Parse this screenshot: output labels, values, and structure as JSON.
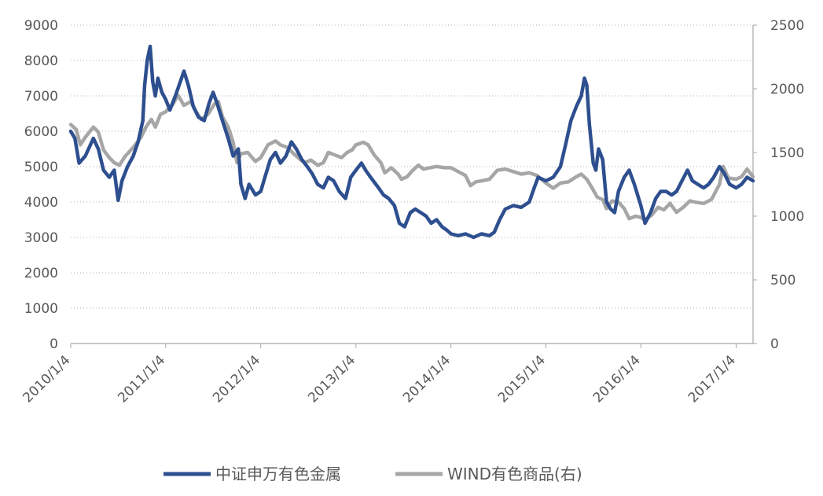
{
  "chart_data": {
    "type": "line",
    "title": "",
    "x_ticks": [
      "2010/1/4",
      "2011/1/4",
      "2012/1/4",
      "2013/1/4",
      "2014/1/4",
      "2015/1/4",
      "2016/1/4",
      "2017/1/4"
    ],
    "x_range": [
      "2010/1/4",
      "2017/3/10"
    ],
    "y_left": {
      "ticks": [
        0,
        1000,
        2000,
        3000,
        4000,
        5000,
        6000,
        7000,
        8000,
        9000
      ],
      "ylim": [
        0,
        9000
      ]
    },
    "y_right": {
      "ticks": [
        0,
        500,
        1000,
        1500,
        2000,
        2500
      ],
      "ylim": [
        0,
        2500
      ]
    },
    "grid": "horizontal-dotted",
    "legend_position": "bottom",
    "series": [
      {
        "name": "中证申万有色金属",
        "axis": "left",
        "color": "#2e4f8f",
        "points": [
          [
            "2010/1/4",
            6000
          ],
          [
            "2010/1/20",
            5800
          ],
          [
            "2010/2/5",
            5100
          ],
          [
            "2010/3/1",
            5300
          ],
          [
            "2010/4/1",
            5800
          ],
          [
            "2010/4/20",
            5500
          ],
          [
            "2010/5/10",
            4900
          ],
          [
            "2010/6/1",
            4700
          ],
          [
            "2010/6/20",
            4900
          ],
          [
            "2010/7/5",
            4050
          ],
          [
            "2010/7/20",
            4600
          ],
          [
            "2010/8/10",
            5000
          ],
          [
            "2010/9/1",
            5300
          ],
          [
            "2010/9/20",
            5700
          ],
          [
            "2010/10/8",
            6300
          ],
          [
            "2010/10/15",
            7300
          ],
          [
            "2010/10/25",
            8000
          ],
          [
            "2010/11/5",
            8400
          ],
          [
            "2010/11/15",
            7400
          ],
          [
            "2010/11/25",
            7000
          ],
          [
            "2010/12/5",
            7500
          ],
          [
            "2010/12/20",
            7100
          ],
          [
            "2011/1/4",
            6900
          ],
          [
            "2011/1/20",
            6600
          ],
          [
            "2011/2/10",
            7000
          ],
          [
            "2011/3/1",
            7400
          ],
          [
            "2011/3/15",
            7700
          ],
          [
            "2011/4/1",
            7300
          ],
          [
            "2011/4/20",
            6700
          ],
          [
            "2011/5/10",
            6400
          ],
          [
            "2011/6/1",
            6300
          ],
          [
            "2011/6/20",
            6800
          ],
          [
            "2011/7/5",
            7100
          ],
          [
            "2011/7/20",
            6800
          ],
          [
            "2011/8/10",
            6300
          ],
          [
            "2011/9/1",
            5800
          ],
          [
            "2011/9/20",
            5300
          ],
          [
            "2011/10/10",
            5500
          ],
          [
            "2011/10/20",
            4500
          ],
          [
            "2011/11/5",
            4100
          ],
          [
            "2011/11/20",
            4500
          ],
          [
            "2011/12/15",
            4200
          ],
          [
            "2012/1/4",
            4300
          ],
          [
            "2012/1/20",
            4700
          ],
          [
            "2012/2/10",
            5200
          ],
          [
            "2012/3/1",
            5400
          ],
          [
            "2012/3/20",
            5100
          ],
          [
            "2012/4/10",
            5300
          ],
          [
            "2012/5/1",
            5700
          ],
          [
            "2012/5/20",
            5500
          ],
          [
            "2012/6/10",
            5200
          ],
          [
            "2012/7/1",
            5000
          ],
          [
            "2012/7/20",
            4800
          ],
          [
            "2012/8/10",
            4500
          ],
          [
            "2012/9/1",
            4400
          ],
          [
            "2012/9/20",
            4700
          ],
          [
            "2012/10/10",
            4600
          ],
          [
            "2012/11/1",
            4300
          ],
          [
            "2012/11/25",
            4100
          ],
          [
            "2012/12/15",
            4700
          ],
          [
            "2013/1/4",
            4900
          ],
          [
            "2013/1/25",
            5100
          ],
          [
            "2013/2/10",
            4900
          ],
          [
            "2013/3/1",
            4700
          ],
          [
            "2013/4/1",
            4400
          ],
          [
            "2013/4/20",
            4200
          ],
          [
            "2013/5/10",
            4100
          ],
          [
            "2013/6/1",
            3900
          ],
          [
            "2013/6/20",
            3400
          ],
          [
            "2013/7/10",
            3300
          ],
          [
            "2013/8/1",
            3700
          ],
          [
            "2013/8/20",
            3800
          ],
          [
            "2013/9/10",
            3700
          ],
          [
            "2013/10/1",
            3600
          ],
          [
            "2013/10/20",
            3400
          ],
          [
            "2013/11/10",
            3500
          ],
          [
            "2013/12/1",
            3300
          ],
          [
            "2013/12/20",
            3200
          ],
          [
            "2014/1/4",
            3100
          ],
          [
            "2014/2/1",
            3050
          ],
          [
            "2014/3/1",
            3100
          ],
          [
            "2014/4/1",
            3000
          ],
          [
            "2014/5/1",
            3100
          ],
          [
            "2014/6/1",
            3050
          ],
          [
            "2014/6/20",
            3150
          ],
          [
            "2014/7/10",
            3500
          ],
          [
            "2014/8/1",
            3800
          ],
          [
            "2014/9/1",
            3900
          ],
          [
            "2014/10/1",
            3850
          ],
          [
            "2014/11/1",
            4000
          ],
          [
            "2014/11/20",
            4400
          ],
          [
            "2014/12/5",
            4700
          ],
          [
            "2015/1/4",
            4600
          ],
          [
            "2015/2/1",
            4700
          ],
          [
            "2015/3/1",
            5000
          ],
          [
            "2015/3/20",
            5600
          ],
          [
            "2015/4/10",
            6300
          ],
          [
            "2015/5/1",
            6700
          ],
          [
            "2015/5/20",
            7000
          ],
          [
            "2015/6/1",
            7500
          ],
          [
            "2015/6/10",
            7300
          ],
          [
            "2015/6/20",
            6200
          ],
          [
            "2015/7/5",
            5100
          ],
          [
            "2015/7/15",
            4900
          ],
          [
            "2015/7/25",
            5500
          ],
          [
            "2015/8/10",
            5200
          ],
          [
            "2015/8/25",
            4000
          ],
          [
            "2015/9/10",
            3800
          ],
          [
            "2015/9/25",
            3700
          ],
          [
            "2015/10/10",
            4300
          ],
          [
            "2015/11/1",
            4700
          ],
          [
            "2015/11/20",
            4900
          ],
          [
            "2015/12/10",
            4500
          ],
          [
            "2016/1/4",
            3900
          ],
          [
            "2016/1/20",
            3400
          ],
          [
            "2016/2/10",
            3700
          ],
          [
            "2016/3/1",
            4100
          ],
          [
            "2016/3/20",
            4300
          ],
          [
            "2016/4/10",
            4300
          ],
          [
            "2016/5/1",
            4200
          ],
          [
            "2016/5/20",
            4300
          ],
          [
            "2016/6/10",
            4600
          ],
          [
            "2016/7/1",
            4900
          ],
          [
            "2016/7/20",
            4600
          ],
          [
            "2016/8/10",
            4500
          ],
          [
            "2016/9/1",
            4400
          ],
          [
            "2016/9/20",
            4500
          ],
          [
            "2016/10/10",
            4700
          ],
          [
            "2016/11/1",
            5000
          ],
          [
            "2016/11/20",
            4800
          ],
          [
            "2016/12/10",
            4500
          ],
          [
            "2017/1/4",
            4400
          ],
          [
            "2017/1/25",
            4500
          ],
          [
            "2017/2/15",
            4700
          ],
          [
            "2017/3/10",
            4600
          ]
        ]
      },
      {
        "name": "WIND有色商品(右)",
        "axis": "right",
        "color": "#a6a6a6",
        "points": [
          [
            "2010/1/4",
            1720
          ],
          [
            "2010/1/25",
            1680
          ],
          [
            "2010/2/10",
            1560
          ],
          [
            "2010/3/1",
            1620
          ],
          [
            "2010/4/1",
            1700
          ],
          [
            "2010/4/20",
            1660
          ],
          [
            "2010/5/10",
            1520
          ],
          [
            "2010/6/1",
            1460
          ],
          [
            "2010/6/20",
            1420
          ],
          [
            "2010/7/10",
            1400
          ],
          [
            "2010/8/1",
            1470
          ],
          [
            "2010/9/1",
            1540
          ],
          [
            "2010/10/1",
            1620
          ],
          [
            "2010/10/20",
            1700
          ],
          [
            "2010/11/10",
            1760
          ],
          [
            "2010/11/25",
            1700
          ],
          [
            "2010/12/15",
            1800
          ],
          [
            "2011/1/4",
            1820
          ],
          [
            "2011/2/1",
            1880
          ],
          [
            "2011/2/20",
            1950
          ],
          [
            "2011/3/15",
            1870
          ],
          [
            "2011/4/10",
            1900
          ],
          [
            "2011/5/1",
            1820
          ],
          [
            "2011/5/20",
            1760
          ],
          [
            "2011/6/15",
            1800
          ],
          [
            "2011/7/10",
            1880
          ],
          [
            "2011/7/25",
            1900
          ],
          [
            "2011/8/10",
            1780
          ],
          [
            "2011/9/1",
            1700
          ],
          [
            "2011/9/20",
            1580
          ],
          [
            "2011/10/5",
            1420
          ],
          [
            "2011/10/20",
            1490
          ],
          [
            "2011/11/15",
            1500
          ],
          [
            "2011/12/15",
            1430
          ],
          [
            "2012/1/4",
            1460
          ],
          [
            "2012/2/1",
            1560
          ],
          [
            "2012/3/1",
            1590
          ],
          [
            "2012/3/20",
            1560
          ],
          [
            "2012/4/15",
            1540
          ],
          [
            "2012/5/10",
            1490
          ],
          [
            "2012/6/1",
            1450
          ],
          [
            "2012/6/20",
            1420
          ],
          [
            "2012/7/15",
            1440
          ],
          [
            "2012/8/10",
            1400
          ],
          [
            "2012/9/1",
            1420
          ],
          [
            "2012/9/20",
            1500
          ],
          [
            "2012/10/15",
            1480
          ],
          [
            "2012/11/10",
            1460
          ],
          [
            "2012/12/1",
            1500
          ],
          [
            "2012/12/20",
            1520
          ],
          [
            "2013/1/4",
            1560
          ],
          [
            "2013/2/1",
            1580
          ],
          [
            "2013/2/20",
            1560
          ],
          [
            "2013/3/15",
            1480
          ],
          [
            "2013/4/10",
            1420
          ],
          [
            "2013/4/25",
            1340
          ],
          [
            "2013/5/20",
            1380
          ],
          [
            "2013/6/15",
            1330
          ],
          [
            "2013/6/28",
            1290
          ],
          [
            "2013/7/20",
            1310
          ],
          [
            "2013/8/10",
            1360
          ],
          [
            "2013/9/1",
            1400
          ],
          [
            "2013/9/20",
            1370
          ],
          [
            "2013/10/15",
            1380
          ],
          [
            "2013/11/10",
            1390
          ],
          [
            "2013/12/10",
            1380
          ],
          [
            "2014/1/4",
            1380
          ],
          [
            "2014/2/1",
            1350
          ],
          [
            "2014/3/1",
            1320
          ],
          [
            "2014/3/20",
            1240
          ],
          [
            "2014/4/10",
            1270
          ],
          [
            "2014/5/10",
            1280
          ],
          [
            "2014/6/1",
            1290
          ],
          [
            "2014/7/1",
            1360
          ],
          [
            "2014/8/1",
            1370
          ],
          [
            "2014/9/1",
            1350
          ],
          [
            "2014/10/1",
            1330
          ],
          [
            "2014/11/1",
            1340
          ],
          [
            "2014/12/1",
            1320
          ],
          [
            "2015/1/4",
            1260
          ],
          [
            "2015/2/1",
            1220
          ],
          [
            "2015/3/1",
            1260
          ],
          [
            "2015/4/1",
            1270
          ],
          [
            "2015/5/1",
            1310
          ],
          [
            "2015/5/20",
            1330
          ],
          [
            "2015/6/10",
            1290
          ],
          [
            "2015/7/1",
            1220
          ],
          [
            "2015/7/20",
            1150
          ],
          [
            "2015/8/10",
            1130
          ],
          [
            "2015/8/25",
            1060
          ],
          [
            "2015/9/15",
            1120
          ],
          [
            "2015/10/10",
            1110
          ],
          [
            "2015/11/1",
            1060
          ],
          [
            "2015/11/20",
            980
          ],
          [
            "2015/12/15",
            1000
          ],
          [
            "2016/1/4",
            990
          ],
          [
            "2016/1/20",
            970
          ],
          [
            "2016/2/15",
            1010
          ],
          [
            "2016/3/10",
            1070
          ],
          [
            "2016/4/1",
            1050
          ],
          [
            "2016/4/25",
            1100
          ],
          [
            "2016/5/20",
            1030
          ],
          [
            "2016/6/15",
            1070
          ],
          [
            "2016/7/10",
            1120
          ],
          [
            "2016/8/1",
            1110
          ],
          [
            "2016/9/1",
            1100
          ],
          [
            "2016/10/1",
            1130
          ],
          [
            "2016/11/1",
            1250
          ],
          [
            "2016/11/15",
            1390
          ],
          [
            "2016/12/5",
            1300
          ],
          [
            "2017/1/4",
            1290
          ],
          [
            "2017/1/25",
            1310
          ],
          [
            "2017/2/15",
            1370
          ],
          [
            "2017/3/10",
            1310
          ]
        ]
      }
    ]
  }
}
